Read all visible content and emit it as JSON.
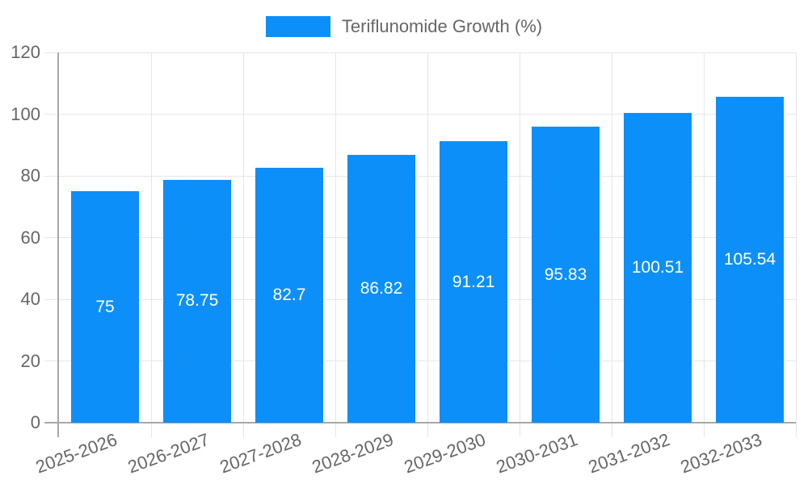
{
  "legend": {
    "label": "Teriflunomide Growth (%)"
  },
  "colors": {
    "bar": "#0d8ff9",
    "grid": "#e6e6e6",
    "axis": "#a8a8a8",
    "tick_text": "#666666",
    "value_text": "#ffffff",
    "background": "#ffffff"
  },
  "chart_data": {
    "type": "bar",
    "title": "",
    "xlabel": "",
    "ylabel": "",
    "legend": "Teriflunomide Growth (%)",
    "legend_position": "top",
    "categories": [
      "2025-2026",
      "2026-2027",
      "2027-2028",
      "2028-2029",
      "2029-2030",
      "2030-2031",
      "2031-2032",
      "2032-2033"
    ],
    "values": [
      75,
      78.75,
      82.7,
      86.82,
      91.21,
      95.83,
      100.51,
      105.54
    ],
    "value_labels": [
      "75",
      "78.75",
      "82.7",
      "86.82",
      "91.21",
      "95.83",
      "100.51",
      "105.54"
    ],
    "ylim": [
      0,
      120
    ],
    "yticks": [
      0,
      20,
      40,
      60,
      80,
      100,
      120
    ],
    "grid": true,
    "x_label_rotation_deg": -20,
    "bar_color": "#0d8ff9"
  }
}
